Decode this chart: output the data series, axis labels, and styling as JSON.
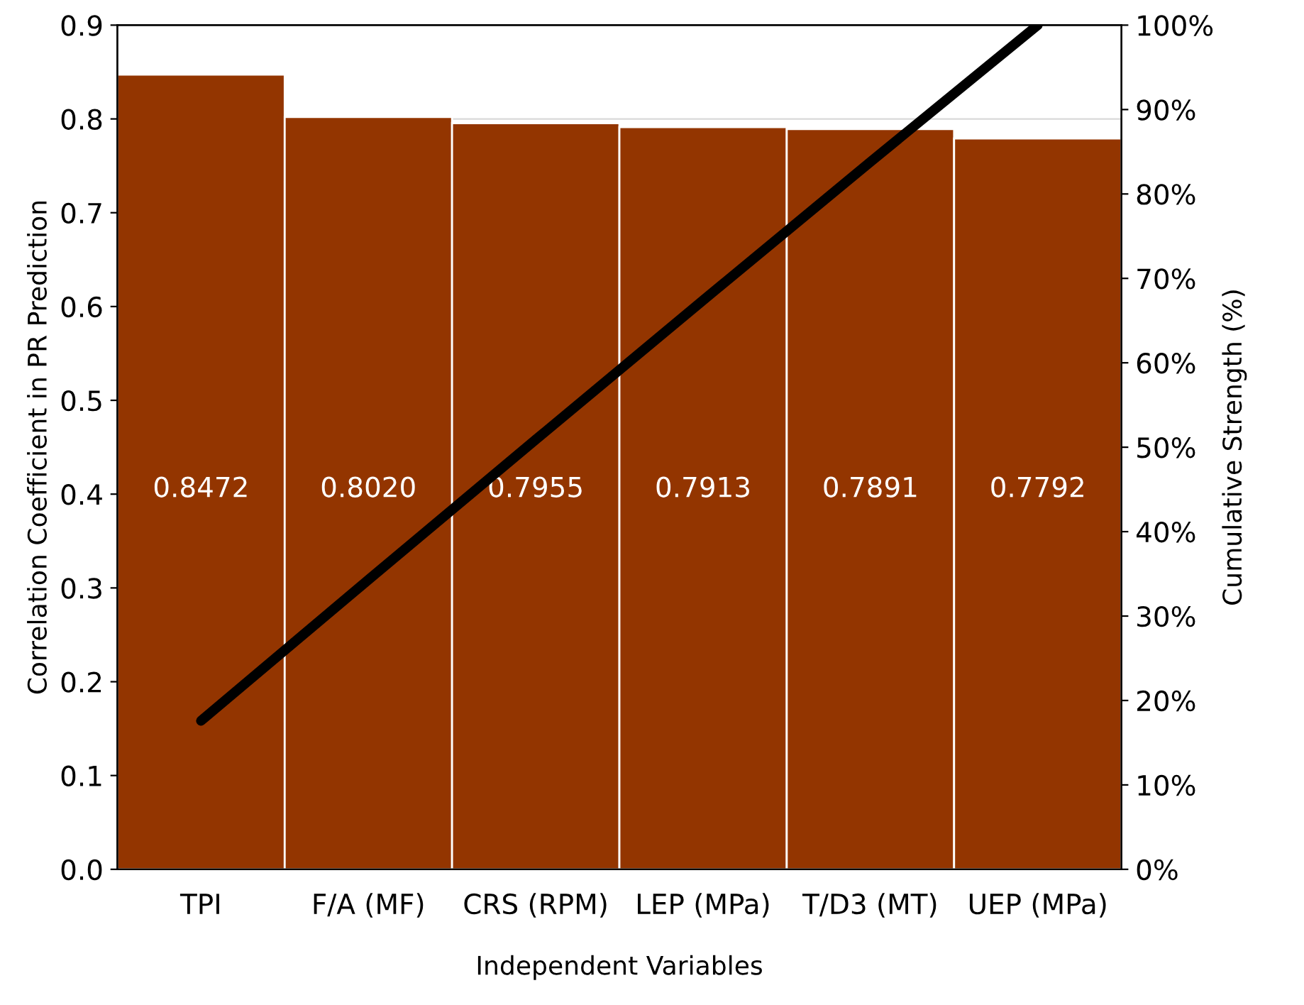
{
  "chart_data": {
    "type": "bar",
    "xlabel": "Independent Variables",
    "ylabel": "Correlation Coefficient in PR Prediction",
    "y2label": "Cumulative Strength (%)",
    "categories": [
      "TPI",
      "F/A (MF)",
      "CRS (RPM)",
      "LEP (MPa)",
      "T/D3 (MT)",
      "UEP (MPa)"
    ],
    "series": [
      {
        "color": "#933500",
        "values": [
          0.8472,
          0.802,
          0.7955,
          0.7913,
          0.7891,
          0.7792
        ],
        "value_labels": [
          "0.8472",
          "0.8020",
          "0.7955",
          "0.7913",
          "0.7891",
          "0.7792"
        ]
      },
      {
        "type": "line",
        "axis": "y2",
        "color": "#000000",
        "values": [
          17.6,
          34.3,
          50.9,
          67.4,
          83.8,
          100
        ]
      }
    ],
    "ylim": [
      0,
      0.9
    ],
    "yticks": [
      {
        "value": 0,
        "label": "0.0"
      },
      {
        "value": 0.1,
        "label": "0.1"
      },
      {
        "value": 0.2,
        "label": "0.2"
      },
      {
        "value": 0.3,
        "label": "0.3"
      },
      {
        "value": 0.4,
        "label": "0.4"
      },
      {
        "value": 0.5,
        "label": "0.5"
      },
      {
        "value": 0.6,
        "label": "0.6"
      },
      {
        "value": 0.7,
        "label": "0.7"
      },
      {
        "value": 0.8,
        "label": "0.8"
      },
      {
        "value": 0.9,
        "label": "0.9"
      }
    ],
    "y2lim": [
      0,
      100
    ],
    "y2ticks": [
      {
        "value": 0,
        "label": "0%"
      },
      {
        "value": 10,
        "label": "10%"
      },
      {
        "value": 20,
        "label": "20%"
      },
      {
        "value": 30,
        "label": "30%"
      },
      {
        "value": 40,
        "label": "40%"
      },
      {
        "value": 50,
        "label": "50%"
      },
      {
        "value": 60,
        "label": "60%"
      },
      {
        "value": 70,
        "label": "70%"
      },
      {
        "value": 80,
        "label": "80%"
      },
      {
        "value": 90,
        "label": "90%"
      },
      {
        "value": 100,
        "label": "100%"
      }
    ],
    "grid": "y",
    "legend": false,
    "marker": "none",
    "line_style": "solid"
  }
}
